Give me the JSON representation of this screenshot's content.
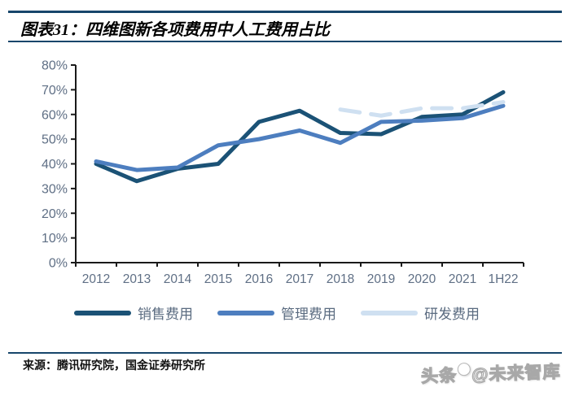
{
  "header": {
    "title": "图表31：四维图新各项费用中人工费用占比"
  },
  "footer": {
    "source": "来源：腾讯研究院，国金证券研究所",
    "watermark_prefix": "头条",
    "watermark_suffix": "@未来智库"
  },
  "colors": {
    "rule_navy": "#17466b",
    "axis": "#1a1a1a",
    "tick_label": "#5f6f85",
    "series_sales": "#1b5276",
    "series_admin": "#4d7ebf",
    "series_rd": "#cfe0f1"
  },
  "chart_data": {
    "type": "line",
    "title": "四维图新各项费用中人工费用占比",
    "categories": [
      "2012",
      "2013",
      "2014",
      "2015",
      "2016",
      "2017",
      "2018",
      "2019",
      "2020",
      "2021",
      "1H22"
    ],
    "series": [
      {
        "name": "销售费用",
        "color": "#1b5276",
        "dash": null,
        "values": [
          40,
          33,
          38,
          40,
          57,
          61.5,
          52.5,
          52,
          59,
          60,
          69
        ]
      },
      {
        "name": "管理费用",
        "color": "#4d7ebf",
        "dash": null,
        "values": [
          41,
          37.5,
          38.5,
          47.5,
          50,
          53.5,
          48.5,
          57,
          57.5,
          58.5,
          63.5
        ]
      },
      {
        "name": "研发费用",
        "color": "#cfe0f1",
        "dash": "24 14",
        "values": [
          null,
          null,
          null,
          null,
          null,
          null,
          62,
          59.5,
          62.5,
          62.5,
          65
        ]
      }
    ],
    "ylim": [
      0,
      80
    ],
    "ytick_step": 10,
    "ytick_labels": [
      "0%",
      "10%",
      "20%",
      "30%",
      "40%",
      "50%",
      "60%",
      "70%",
      "80%"
    ],
    "grid": false,
    "legend_position": "bottom"
  }
}
